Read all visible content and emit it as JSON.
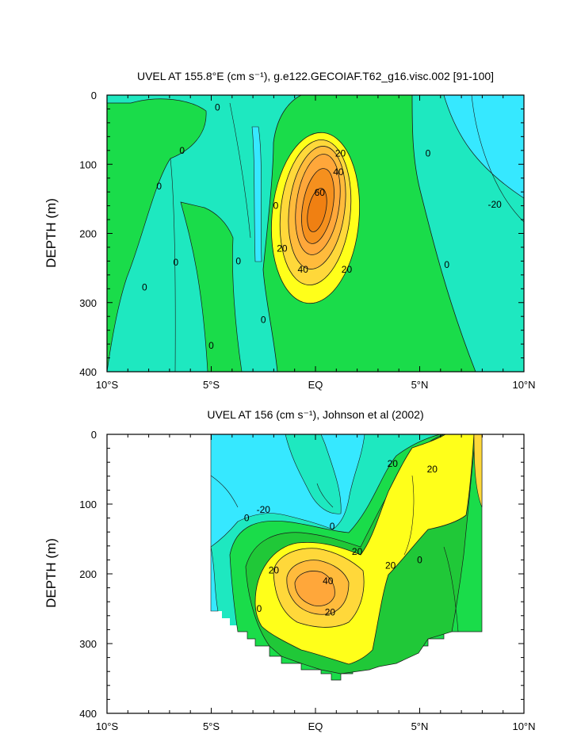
{
  "chart_data": [
    {
      "type": "contour",
      "title": "UVEL AT 155.8°E (cm s⁻¹), g.e122.GECOIAF.T62_g16.visc.002 [91-100]",
      "ylabel": "DEPTH (m)",
      "xlabel": "",
      "xlim": [
        -10,
        10
      ],
      "ylim": [
        400,
        0
      ],
      "x_ticks": [
        -10,
        -5,
        0,
        5,
        10
      ],
      "x_tick_labels": [
        "10°S",
        "5°S",
        "EQ",
        "5°N",
        "10°N"
      ],
      "y_ticks": [
        0,
        100,
        200,
        300,
        400
      ],
      "y_tick_labels": [
        "0",
        "100",
        "200",
        "300",
        "400"
      ],
      "contour_interval": 10,
      "undercurrent_core": {
        "lon": 0,
        "depth": 175,
        "max_speed": 70
      },
      "contour_labels": [
        {
          "text": "0",
          "lon": -4.7,
          "depth": 18
        },
        {
          "text": "0",
          "lon": -6.4,
          "depth": 80
        },
        {
          "text": "0",
          "lon": -7.5,
          "depth": 132
        },
        {
          "text": "0",
          "lon": -8.2,
          "depth": 278
        },
        {
          "text": "0",
          "lon": -6.7,
          "depth": 242
        },
        {
          "text": "0",
          "lon": -5.0,
          "depth": 362
        },
        {
          "text": "0",
          "lon": -3.7,
          "depth": 240
        },
        {
          "text": "0",
          "lon": -2.5,
          "depth": 325
        },
        {
          "text": "0",
          "lon": -1.9,
          "depth": 160
        },
        {
          "text": "0",
          "lon": 5.4,
          "depth": 84
        },
        {
          "text": "0",
          "lon": 6.3,
          "depth": 245
        },
        {
          "text": "-20",
          "lon": 8.6,
          "depth": 158
        },
        {
          "text": "20",
          "lon": 1.2,
          "depth": 84
        },
        {
          "text": "40",
          "lon": 1.1,
          "depth": 111
        },
        {
          "text": "60",
          "lon": 0.2,
          "depth": 141
        },
        {
          "text": "20",
          "lon": -1.6,
          "depth": 222
        },
        {
          "text": "40",
          "lon": -0.6,
          "depth": 252
        },
        {
          "text": "20",
          "lon": 1.5,
          "depth": 252
        }
      ]
    },
    {
      "type": "contour",
      "title": "UVEL AT 156 (cm s⁻¹), Johnson et al (2002)",
      "ylabel": "DEPTH (m)",
      "xlabel": "",
      "xlim": [
        -10,
        10
      ],
      "ylim": [
        400,
        0
      ],
      "x_ticks": [
        -10,
        -5,
        0,
        5,
        10
      ],
      "x_tick_labels": [
        "10°S",
        "5°S",
        "EQ",
        "5°N",
        "10°N"
      ],
      "y_ticks": [
        0,
        100,
        200,
        300,
        400
      ],
      "y_tick_labels": [
        "0",
        "100",
        "200",
        "300",
        "400"
      ],
      "data_extent_lon": [
        -5,
        8
      ],
      "contour_interval": 10,
      "undercurrent_core": {
        "lon": -0.5,
        "depth": 210,
        "max_speed": 50
      },
      "contour_labels": [
        {
          "text": "-20",
          "lon": -2.5,
          "depth": 108
        },
        {
          "text": "0",
          "lon": -3.3,
          "depth": 120
        },
        {
          "text": "0",
          "lon": 0.8,
          "depth": 132
        },
        {
          "text": "20",
          "lon": 2.0,
          "depth": 168
        },
        {
          "text": "20",
          "lon": 3.7,
          "depth": 42
        },
        {
          "text": "20",
          "lon": 5.6,
          "depth": 50
        },
        {
          "text": "20",
          "lon": 3.6,
          "depth": 188
        },
        {
          "text": "0",
          "lon": 5.0,
          "depth": 180
        },
        {
          "text": "20",
          "lon": -2.0,
          "depth": 195
        },
        {
          "text": "40",
          "lon": 0.6,
          "depth": 210
        },
        {
          "text": "20",
          "lon": 0.7,
          "depth": 255
        },
        {
          "text": "0",
          "lon": -2.7,
          "depth": 250
        }
      ]
    }
  ]
}
